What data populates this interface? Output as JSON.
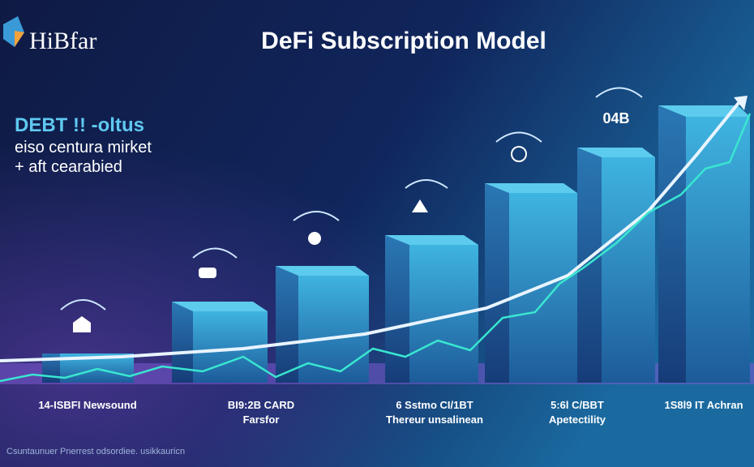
{
  "header": {
    "logo": "HiBfar",
    "title": "DeFi Subscription Model"
  },
  "callout": {
    "lines": [
      "DEBT !! -oltus",
      "eiso centura mirket",
      "+ aft cearabied"
    ]
  },
  "badge": "04B",
  "labels": [
    {
      "lines": [
        "14-ISBFI Newsound"
      ]
    },
    {
      "lines": [
        "BI9:2B CARD",
        "Farsfor"
      ]
    },
    {
      "lines": [
        "6 Sstmo CI/1BT",
        "Thereur unsalinean"
      ]
    },
    {
      "lines": [
        "5:6l C/BBT",
        "Apetectility"
      ]
    },
    {
      "lines": [
        "1S8l9 IT Achran"
      ]
    }
  ],
  "footer": "Csuntaunuer Pnerrest odsordiee. usikkauricn"
}
